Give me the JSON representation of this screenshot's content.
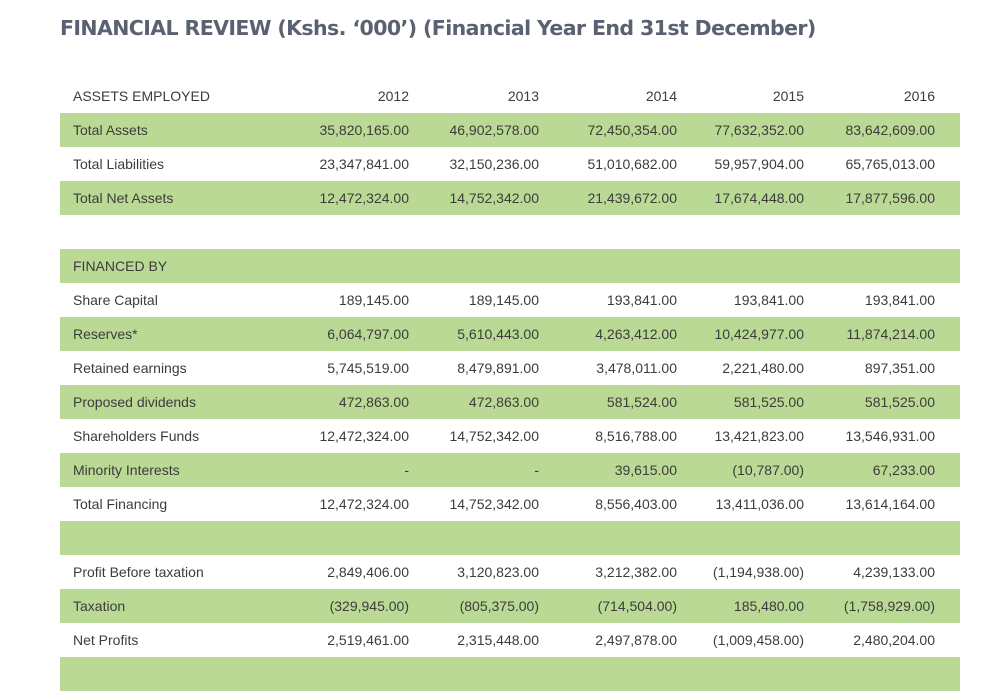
{
  "title": "FINANCIAL REVIEW (Kshs. ‘000’) (Financial Year End 31st December)",
  "colors": {
    "row_highlight": "#B9D994",
    "title_text": "#5A6170",
    "body_text": "#3C3C3C"
  },
  "table": {
    "years": [
      "2012",
      "2013",
      "2014",
      "2015",
      "2016"
    ],
    "rows": [
      {
        "label": "ASSETS EMPLOYED",
        "type": "header",
        "green": false,
        "values": [
          "2012",
          "2013",
          "2014",
          "2015",
          "2016"
        ]
      },
      {
        "label": "Total Assets",
        "type": "data",
        "green": true,
        "values": [
          "35,820,165.00",
          "46,902,578.00",
          "72,450,354.00",
          "77,632,352.00",
          "83,642,609.00"
        ]
      },
      {
        "label": "Total Liabilities",
        "type": "data",
        "green": false,
        "values": [
          "23,347,841.00",
          "32,150,236.00",
          "51,010,682.00",
          "59,957,904.00",
          "65,765,013.00"
        ]
      },
      {
        "label": "Total Net Assets",
        "type": "data",
        "green": true,
        "values": [
          "12,472,324.00",
          "14,752,342.00",
          "21,439,672.00",
          "17,674,448.00",
          "17,877,596.00"
        ]
      },
      {
        "label": "",
        "type": "spacer",
        "green": false,
        "values": [
          "",
          "",
          "",
          "",
          ""
        ]
      },
      {
        "label": "FINANCED BY",
        "type": "section",
        "green": true,
        "values": [
          "",
          "",
          "",
          "",
          ""
        ]
      },
      {
        "label": "Share Capital",
        "type": "data",
        "green": false,
        "values": [
          "189,145.00",
          "189,145.00",
          "193,841.00",
          "193,841.00",
          "193,841.00"
        ]
      },
      {
        "label": "Reserves*",
        "type": "data",
        "green": true,
        "values": [
          "6,064,797.00",
          "5,610,443.00",
          "4,263,412.00",
          "10,424,977.00",
          "11,874,214.00"
        ]
      },
      {
        "label": "Retained earnings",
        "type": "data",
        "green": false,
        "values": [
          "5,745,519.00",
          "8,479,891.00",
          "3,478,011.00",
          "2,221,480.00",
          "897,351.00"
        ]
      },
      {
        "label": "Proposed dividends",
        "type": "data",
        "green": true,
        "values": [
          "472,863.00",
          "472,863.00",
          "581,524.00",
          "581,525.00",
          "581,525.00"
        ]
      },
      {
        "label": "Shareholders Funds",
        "type": "data",
        "green": false,
        "values": [
          "12,472,324.00",
          "14,752,342.00",
          "8,516,788.00",
          "13,421,823.00",
          "13,546,931.00"
        ]
      },
      {
        "label": "Minority  Interests",
        "type": "data",
        "green": true,
        "values": [
          "-",
          "-",
          "39,615.00",
          "(10,787.00)",
          "67,233.00"
        ]
      },
      {
        "label": "Total Financing",
        "type": "data",
        "green": false,
        "values": [
          "12,472,324.00",
          "14,752,342.00",
          "8,556,403.00",
          "13,411,036.00",
          "13,614,164.00"
        ]
      },
      {
        "label": "",
        "type": "spacer",
        "green": true,
        "values": [
          "",
          "",
          "",
          "",
          ""
        ]
      },
      {
        "label": "Profit Before taxation",
        "type": "data",
        "green": false,
        "values": [
          "2,849,406.00",
          "3,120,823.00",
          "3,212,382.00",
          "(1,194,938.00)",
          "4,239,133.00"
        ]
      },
      {
        "label": "Taxation",
        "type": "data",
        "green": true,
        "values": [
          "(329,945.00)",
          "(805,375.00)",
          "(714,504.00)",
          "185,480.00",
          "(1,758,929.00)"
        ]
      },
      {
        "label": "Net Profits",
        "type": "data",
        "green": false,
        "values": [
          "2,519,461.00",
          "2,315,448.00",
          "2,497,878.00",
          "(1,009,458.00)",
          "2,480,204.00"
        ]
      },
      {
        "label": "",
        "type": "spacer",
        "green": true,
        "values": [
          "",
          "",
          "",
          "",
          ""
        ]
      }
    ]
  }
}
